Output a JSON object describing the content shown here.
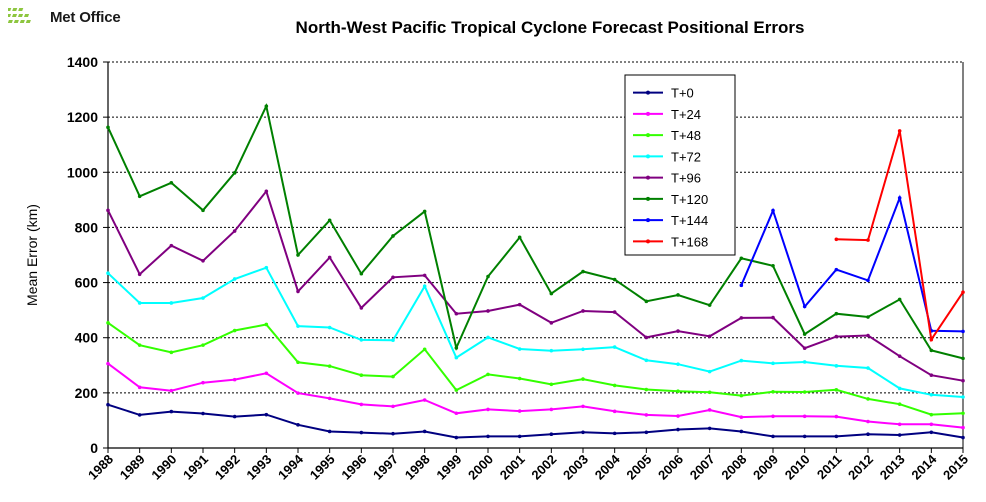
{
  "header": {
    "logo_text": "Met Office"
  },
  "chart_data": {
    "type": "line",
    "title": "North-West Pacific Tropical Cyclone Forecast Positional Errors",
    "xlabel": "",
    "ylabel": "Mean Error (km)",
    "ylim": [
      0,
      1400
    ],
    "yticks": [
      0,
      200,
      400,
      600,
      800,
      1000,
      1200,
      1400
    ],
    "grid": "horizontal dashed",
    "legend": "top-right inside plot",
    "categories": [
      "1988",
      "1989",
      "1990",
      "1991",
      "1992",
      "1993",
      "1994",
      "1995",
      "1996",
      "1997",
      "1998",
      "1999",
      "2000",
      "2001",
      "2002",
      "2003",
      "2004",
      "2005",
      "2006",
      "2007",
      "2008",
      "2009",
      "2010",
      "2011",
      "2012",
      "2013",
      "2014",
      "2015"
    ],
    "series": [
      {
        "name": "T+0",
        "color": "#000080",
        "values": [
          157,
          120,
          132,
          125,
          114,
          121,
          84,
          60,
          56,
          52,
          60,
          38,
          42,
          42,
          50,
          57,
          53,
          57,
          67,
          71,
          60,
          42,
          42,
          42,
          50,
          47,
          57,
          38
        ]
      },
      {
        "name": "T+24",
        "color": "#ff00ff",
        "values": [
          306,
          220,
          208,
          237,
          248,
          271,
          199,
          180,
          158,
          151,
          174,
          126,
          140,
          134,
          140,
          151,
          133,
          120,
          116,
          138,
          112,
          115,
          115,
          114,
          96,
          86,
          86,
          74
        ]
      },
      {
        "name": "T+48",
        "color": "#33ff00",
        "values": [
          454,
          373,
          347,
          373,
          426,
          448,
          311,
          297,
          264,
          259,
          358,
          210,
          267,
          252,
          231,
          250,
          227,
          212,
          206,
          202,
          190,
          204,
          203,
          211,
          178,
          159,
          121,
          126
        ]
      },
      {
        "name": "T+72",
        "color": "#00ffff",
        "values": [
          634,
          526,
          526,
          544,
          613,
          654,
          442,
          437,
          392,
          391,
          587,
          328,
          401,
          359,
          353,
          358,
          366,
          318,
          304,
          277,
          317,
          307,
          312,
          298,
          290,
          216,
          193,
          185
        ]
      },
      {
        "name": "T+96",
        "color": "#800080",
        "values": [
          862,
          630,
          734,
          679,
          787,
          931,
          568,
          691,
          508,
          619,
          626,
          487,
          497,
          520,
          454,
          497,
          493,
          401,
          424,
          405,
          472,
          473,
          362,
          404,
          408,
          333,
          264,
          244
        ]
      },
      {
        "name": "T+120",
        "color": "#008000",
        "values": [
          1163,
          913,
          962,
          862,
          998,
          1240,
          700,
          826,
          632,
          769,
          858,
          363,
          622,
          764,
          560,
          640,
          611,
          532,
          555,
          518,
          688,
          661,
          413,
          487,
          475,
          539,
          354,
          325
        ]
      },
      {
        "name": "T+144",
        "color": "#0000ff",
        "values": [
          null,
          null,
          null,
          null,
          null,
          null,
          null,
          null,
          null,
          null,
          null,
          null,
          null,
          null,
          null,
          null,
          null,
          null,
          null,
          null,
          590,
          861,
          513,
          647,
          608,
          907,
          425,
          423
        ]
      },
      {
        "name": "T+168",
        "color": "#ff0000",
        "values": [
          null,
          null,
          null,
          null,
          null,
          null,
          null,
          null,
          null,
          null,
          null,
          null,
          null,
          null,
          null,
          null,
          null,
          null,
          null,
          null,
          null,
          null,
          null,
          757,
          754,
          1150,
          393,
          565
        ]
      }
    ]
  }
}
